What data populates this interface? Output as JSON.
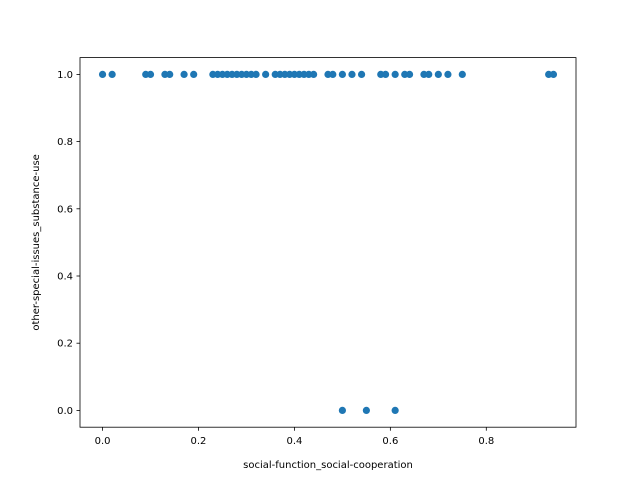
{
  "chart_data": {
    "type": "scatter",
    "title": "",
    "xlabel": "social-function_social-cooperation",
    "ylabel": "other-special-issues_substance-use",
    "xlim": [
      -0.047,
      0.987
    ],
    "ylim": [
      -0.05,
      1.05
    ],
    "xticks": [
      0.0,
      0.2,
      0.4,
      0.6,
      0.8
    ],
    "xtick_labels": [
      "0.0",
      "0.2",
      "0.4",
      "0.6",
      "0.8"
    ],
    "yticks": [
      0.0,
      0.2,
      0.4,
      0.6,
      0.8,
      1.0
    ],
    "ytick_labels": [
      "0.0",
      "0.2",
      "0.4",
      "0.6",
      "0.8",
      "1.0"
    ],
    "grid": false,
    "marker_color": "#1f77b4",
    "points": [
      {
        "x": 0.0,
        "y": 1
      },
      {
        "x": 0.02,
        "y": 1
      },
      {
        "x": 0.09,
        "y": 1
      },
      {
        "x": 0.1,
        "y": 1
      },
      {
        "x": 0.13,
        "y": 1
      },
      {
        "x": 0.14,
        "y": 1
      },
      {
        "x": 0.17,
        "y": 1
      },
      {
        "x": 0.19,
        "y": 1
      },
      {
        "x": 0.23,
        "y": 1
      },
      {
        "x": 0.24,
        "y": 1
      },
      {
        "x": 0.25,
        "y": 1
      },
      {
        "x": 0.26,
        "y": 1
      },
      {
        "x": 0.27,
        "y": 1
      },
      {
        "x": 0.28,
        "y": 1
      },
      {
        "x": 0.29,
        "y": 1
      },
      {
        "x": 0.3,
        "y": 1
      },
      {
        "x": 0.31,
        "y": 1
      },
      {
        "x": 0.32,
        "y": 1
      },
      {
        "x": 0.34,
        "y": 1
      },
      {
        "x": 0.36,
        "y": 1
      },
      {
        "x": 0.37,
        "y": 1
      },
      {
        "x": 0.38,
        "y": 1
      },
      {
        "x": 0.39,
        "y": 1
      },
      {
        "x": 0.4,
        "y": 1
      },
      {
        "x": 0.41,
        "y": 1
      },
      {
        "x": 0.42,
        "y": 1
      },
      {
        "x": 0.43,
        "y": 1
      },
      {
        "x": 0.44,
        "y": 1
      },
      {
        "x": 0.47,
        "y": 1
      },
      {
        "x": 0.48,
        "y": 1
      },
      {
        "x": 0.5,
        "y": 1
      },
      {
        "x": 0.52,
        "y": 1
      },
      {
        "x": 0.54,
        "y": 1
      },
      {
        "x": 0.58,
        "y": 1
      },
      {
        "x": 0.59,
        "y": 1
      },
      {
        "x": 0.61,
        "y": 1
      },
      {
        "x": 0.63,
        "y": 1
      },
      {
        "x": 0.64,
        "y": 1
      },
      {
        "x": 0.67,
        "y": 1
      },
      {
        "x": 0.68,
        "y": 1
      },
      {
        "x": 0.7,
        "y": 1
      },
      {
        "x": 0.72,
        "y": 1
      },
      {
        "x": 0.75,
        "y": 1
      },
      {
        "x": 0.93,
        "y": 1
      },
      {
        "x": 0.94,
        "y": 1
      },
      {
        "x": 0.5,
        "y": 0
      },
      {
        "x": 0.55,
        "y": 0
      },
      {
        "x": 0.61,
        "y": 0
      }
    ]
  }
}
